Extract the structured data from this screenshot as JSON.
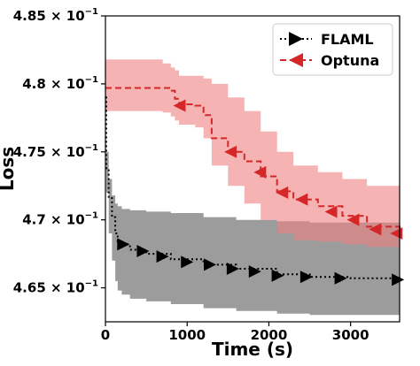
{
  "chart_data": {
    "type": "line",
    "xlabel": "Time (s)",
    "ylabel": "Loss",
    "xlim": [
      0,
      3600
    ],
    "ylim": [
      0.4625,
      0.485
    ],
    "grid": false,
    "legend_position": "top-right",
    "x_ticks": [
      {
        "value": 0,
        "label": "0"
      },
      {
        "value": 1000,
        "label": "1000"
      },
      {
        "value": 2000,
        "label": "2000"
      },
      {
        "value": 3000,
        "label": "3000"
      }
    ],
    "y_ticks": [
      {
        "value": 0.465,
        "mantissa": "4.65",
        "base": "× 10",
        "exp": "−1"
      },
      {
        "value": 0.47,
        "mantissa": "4.7",
        "base": "× 10",
        "exp": "−1"
      },
      {
        "value": 0.475,
        "mantissa": "4.75",
        "base": "× 10",
        "exp": "−1"
      },
      {
        "value": 0.48,
        "mantissa": "4.8",
        "base": "× 10",
        "exp": "−1"
      },
      {
        "value": 0.485,
        "mantissa": "4.85",
        "base": "× 10",
        "exp": "−1"
      }
    ],
    "series": [
      {
        "name": "FLAML",
        "color": "#000000",
        "band_color": "#5a5a5a",
        "band_opacity": 0.6,
        "line_style": "dotted",
        "marker": "triangle-right",
        "x": [
          0,
          10,
          40,
          80,
          120,
          150,
          200,
          300,
          500,
          800,
          1200,
          1600,
          2100,
          2500,
          3000,
          3600
        ],
        "y": [
          0.479,
          0.4738,
          0.4716,
          0.4702,
          0.469,
          0.4684,
          0.4682,
          0.4678,
          0.4675,
          0.4671,
          0.4667,
          0.4664,
          0.466,
          0.4658,
          0.4657,
          0.4656
        ],
        "upper": [
          0.479,
          0.475,
          0.473,
          0.4718,
          0.4712,
          0.471,
          0.4708,
          0.4707,
          0.4706,
          0.4705,
          0.4702,
          0.47,
          0.4699,
          0.4698,
          0.4698,
          0.4697
        ],
        "lower": [
          0.479,
          0.472,
          0.469,
          0.467,
          0.4655,
          0.4648,
          0.4645,
          0.4642,
          0.464,
          0.4638,
          0.4635,
          0.4633,
          0.4631,
          0.463,
          0.463,
          0.463
        ],
        "markers_x": [
          220,
          460,
          700,
          1000,
          1280,
          1560,
          1830,
          2110,
          2460,
          2880,
          3580
        ],
        "markers_y": [
          0.4682,
          0.4677,
          0.4673,
          0.4669,
          0.4667,
          0.4664,
          0.4662,
          0.4659,
          0.4658,
          0.4657,
          0.4656
        ]
      },
      {
        "name": "Optuna",
        "color": "#d62728",
        "band_color": "#f08080",
        "band_opacity": 0.6,
        "line_style": "dashed",
        "marker": "triangle-left",
        "x": [
          0,
          50,
          100,
          200,
          300,
          500,
          700,
          800,
          850,
          900,
          1000,
          1100,
          1200,
          1300,
          1500,
          1700,
          1900,
          2100,
          2300,
          2600,
          2900,
          3200,
          3600
        ],
        "y": [
          0.4797,
          0.4797,
          0.4797,
          0.4797,
          0.4797,
          0.4797,
          0.4797,
          0.4795,
          0.4789,
          0.4786,
          0.4785,
          0.4784,
          0.4777,
          0.476,
          0.475,
          0.4743,
          0.4732,
          0.4721,
          0.4715,
          0.471,
          0.4703,
          0.4695,
          0.469
        ],
        "upper": [
          0.4818,
          0.4818,
          0.4818,
          0.4818,
          0.4818,
          0.4818,
          0.4815,
          0.4812,
          0.481,
          0.4806,
          0.4806,
          0.4806,
          0.4804,
          0.48,
          0.479,
          0.478,
          0.4765,
          0.475,
          0.474,
          0.4735,
          0.473,
          0.4725,
          0.4722
        ],
        "lower": [
          0.478,
          0.478,
          0.478,
          0.478,
          0.478,
          0.478,
          0.4779,
          0.4776,
          0.4773,
          0.477,
          0.477,
          0.4768,
          0.476,
          0.474,
          0.4725,
          0.4712,
          0.47,
          0.469,
          0.4685,
          0.4684,
          0.4682,
          0.468,
          0.468
        ],
        "markers_x": [
          905,
          1530,
          1890,
          2160,
          2400,
          2760,
          3030,
          3300,
          3560
        ],
        "markers_y": [
          0.4784,
          0.475,
          0.4735,
          0.472,
          0.4715,
          0.4706,
          0.47,
          0.4693,
          0.469
        ]
      }
    ]
  }
}
